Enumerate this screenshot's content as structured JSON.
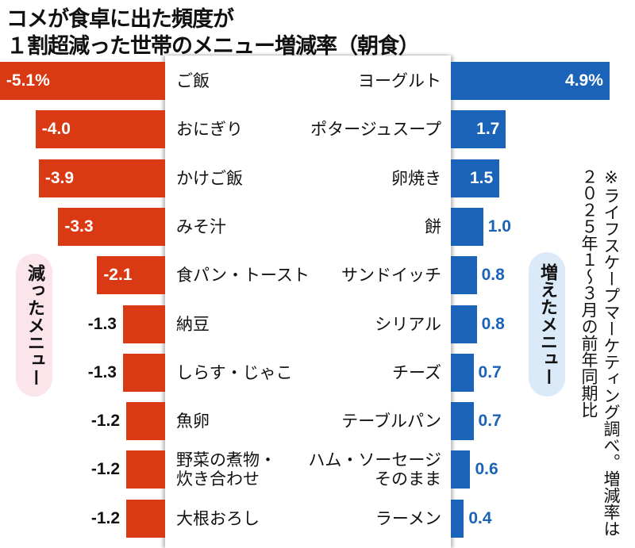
{
  "chart_data": {
    "type": "bar",
    "title_lines": [
      "コメが食卓に出た頻度が",
      "１割超減った世帯のメニュー増減率（朝食）"
    ],
    "unit": "%",
    "decreased": {
      "label": "減ったメニュー",
      "color": "#d93a14",
      "categories": [
        "ご飯",
        "おにぎり",
        "かけご飯",
        "みそ汁",
        "食パン・トースト",
        "納豆",
        "しらす・じゃこ",
        "魚卵",
        "野菜の煮物・\n炊き合わせ",
        "大根おろし"
      ],
      "values": [
        -5.1,
        -4.0,
        -3.9,
        -3.3,
        -2.1,
        -1.3,
        -1.3,
        -1.2,
        -1.2,
        -1.2
      ],
      "value_labels": [
        "-5.1%",
        "-4.0",
        "-3.9",
        "-3.3",
        "-2.1",
        "-1.3",
        "-1.3",
        "-1.2",
        "-1.2",
        "-1.2"
      ]
    },
    "increased": {
      "label": "増えたメニュー",
      "color": "#1a63b8",
      "categories": [
        "ヨーグルト",
        "ポタージュスープ",
        "卵焼き",
        "餅",
        "サンドイッチ",
        "シリアル",
        "チーズ",
        "テーブルパン",
        "ハム・ソーセージ\nそのまま",
        "ラーメン"
      ],
      "values": [
        4.9,
        1.7,
        1.5,
        1.0,
        0.8,
        0.8,
        0.7,
        0.7,
        0.6,
        0.4
      ],
      "value_labels": [
        "4.9%",
        "1.7",
        "1.5",
        "1.0",
        "0.8",
        "0.8",
        "0.7",
        "0.7",
        "0.6",
        "0.4"
      ]
    },
    "note": "※ライフスケープマーケティング調べ。増減率は２０２５年１～３月の前年同期比"
  }
}
